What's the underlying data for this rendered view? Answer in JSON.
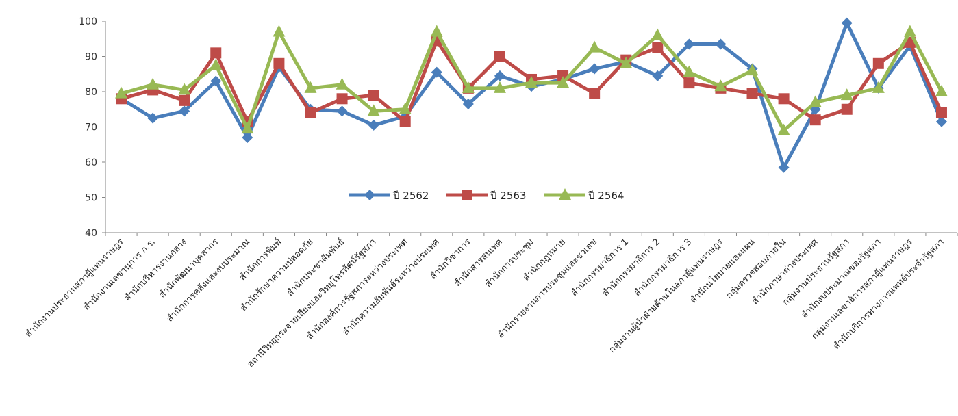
{
  "chart_data": {
    "type": "line",
    "ylim": [
      40,
      100
    ],
    "yticks": [
      40,
      50,
      60,
      70,
      80,
      90,
      100
    ],
    "grid": false,
    "legend_position": "center",
    "categories": [
      "สำนักงานประธานสภาผู้แทนราษฎร",
      "สำนักงานเลขานุการ ก.ร.",
      "สำนักบริหารงานกลาง",
      "สำนักพัฒนาบุคลากร",
      "สำนักการคลังและงบประมาณ",
      "สำนักการพิมพ์",
      "สำนักรักษาความปลอดภัย",
      "สำนักประชาสัมพันธ์",
      "สถานีวิทยุกระจายเสียงและวิทยุโทรทัศน์รัฐสภา",
      "สำนักองค์การรัฐสภาระหว่างประเทศ",
      "สำนักความสัมพันธ์ระหว่างประเทศ",
      "สำนักวิชาการ",
      "สำนักสารสนเทศ",
      "สำนักการประชุม",
      "สำนักกฎหมาย",
      "สำนักรายงานการประชุมและชวเลข",
      "สำนักกรรมาธิการ 1",
      "สำนักกรรมาธิการ 2",
      "สำนักกรรมาธิการ 3",
      "กลุ่มงานผู้นำฝ่ายค้านในสภาผู้แทนราษฎร",
      "สำนักนโยบายและแผน",
      "กลุ่มตรวจสอบภายใน",
      "สำนักภาษาต่างประเทศ",
      "กลุ่มงานประธานรัฐสภา",
      "สำนักงบประมาณของรัฐสภา",
      "กลุ่มงานเลขาธิการสภาผู้แทนราษฎร",
      "สำนักบริการทางการแพทย์ประจำรัฐสภา"
    ],
    "series": [
      {
        "name": "ปี 2562",
        "color": "#4a7ebb",
        "marker": "diamond",
        "values": [
          78,
          72.5,
          74.5,
          83,
          67,
          87,
          75,
          74.5,
          70.5,
          73,
          85.5,
          76.5,
          84.5,
          81.5,
          83.5,
          86.5,
          88.5,
          84.5,
          93.5,
          93.5,
          86.5,
          58.5,
          75,
          99.5,
          81,
          93,
          71.5
        ]
      },
      {
        "name": "ปี 2563",
        "color": "#be4b48",
        "marker": "square",
        "values": [
          78,
          80.5,
          77.5,
          91,
          71.5,
          88,
          74,
          78,
          79,
          71.5,
          94.5,
          81,
          90,
          83.5,
          84.5,
          79.5,
          89,
          92.5,
          82.5,
          81,
          79.5,
          78,
          72,
          75,
          88,
          94,
          74
        ]
      },
      {
        "name": "ปี 2564",
        "color": "#98b954",
        "marker": "triangle",
        "values": [
          79.5,
          82,
          80.5,
          87.5,
          69.5,
          97,
          81,
          82,
          74.5,
          75,
          97,
          81,
          81,
          82.5,
          82.5,
          92.5,
          88,
          96,
          85.5,
          81.5,
          86,
          69,
          77,
          79,
          81,
          97,
          80
        ]
      }
    ]
  }
}
